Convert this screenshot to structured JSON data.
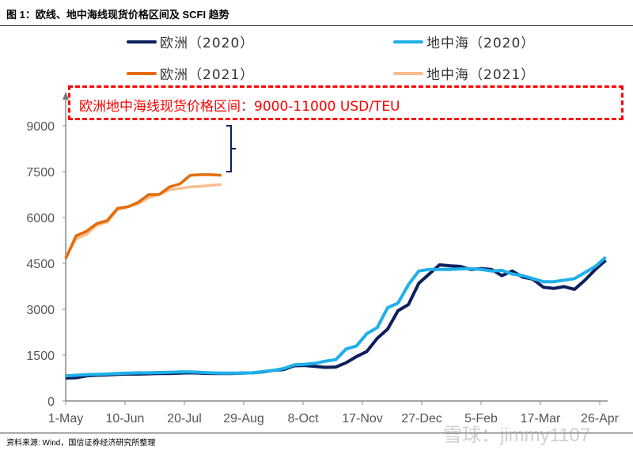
{
  "title": "图 1：欧线、地中海线现货价格区间及 SCFI 趋势",
  "source": "资料来源: Wind，国信证券经济研究所整理",
  "watermark": "雪球：jimmy1107",
  "annotation": "欧洲地中海线现货价格区间：9000-11000 USD/TEU",
  "colors": {
    "eu2020": "#0c1f5c",
    "med2020": "#1fb0ea",
    "eu2021": "#e36c0a",
    "med2021": "#f9be8f",
    "annotation": "#ff0000"
  },
  "chart_data": {
    "type": "line",
    "title": "",
    "xlabel": "",
    "ylabel": "",
    "ylim": [
      0,
      9000
    ],
    "yticks": [
      "0",
      "1500",
      "3000",
      "4500",
      "6000",
      "7500",
      "9000"
    ],
    "xticks": [
      "1-May",
      "10-Jun",
      "20-Jul",
      "29-Aug",
      "8-Oct",
      "17-Nov",
      "27-Dec",
      "5-Feb",
      "17-Mar",
      "26-Apr"
    ],
    "x_interval": "weekly, starting 1-May",
    "grid": false,
    "legend_position": "top",
    "series": [
      {
        "name": "欧洲（2020）",
        "color": "#0c1f5c",
        "values": [
          750,
          760,
          820,
          840,
          850,
          870,
          880,
          880,
          890,
          900,
          900,
          910,
          920,
          910,
          900,
          900,
          900,
          910,
          920,
          950,
          1000,
          1030,
          1150,
          1160,
          1130,
          1100,
          1110,
          1250,
          1450,
          1620,
          2050,
          2350,
          2950,
          3150,
          3850,
          4150,
          4450,
          4420,
          4400,
          4300,
          4330,
          4300,
          4100,
          4250,
          4050,
          3980,
          3720,
          3680,
          3740,
          3650,
          3950,
          4300,
          4600
        ]
      },
      {
        "name": "地中海（2020）",
        "color": "#1fb0ea",
        "values": [
          820,
          840,
          860,
          870,
          880,
          900,
          910,
          920,
          920,
          930,
          940,
          950,
          950,
          940,
          920,
          910,
          910,
          910,
          920,
          960,
          1000,
          1060,
          1180,
          1200,
          1230,
          1300,
          1350,
          1700,
          1800,
          2200,
          2400,
          3050,
          3200,
          3800,
          4250,
          4300,
          4300,
          4300,
          4320,
          4330,
          4300,
          4250,
          4270,
          4150,
          4100,
          4000,
          3900,
          3900,
          3950,
          4000,
          4200,
          4400,
          4700
        ]
      },
      {
        "name": "欧洲（2021）",
        "color": "#e36c0a",
        "values": [
          4650,
          5400,
          5550,
          5800,
          5900,
          6300,
          6350,
          6500,
          6750,
          6750,
          7000,
          7100,
          7380,
          7400,
          7400,
          7380
        ]
      },
      {
        "name": "地中海（2021）",
        "color": "#f9be8f",
        "values": [
          4700,
          5300,
          5450,
          5750,
          5850,
          6250,
          6350,
          6450,
          6650,
          6750,
          6900,
          6950,
          7000,
          7020,
          7050,
          7080
        ]
      }
    ]
  }
}
